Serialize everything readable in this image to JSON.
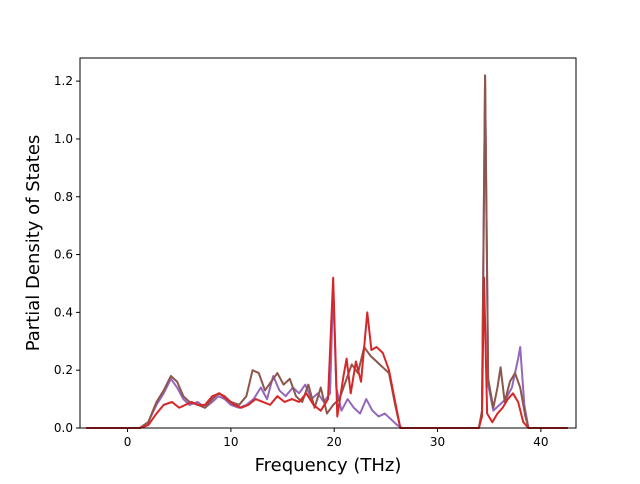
{
  "chart_data": {
    "type": "line",
    "title": "",
    "xlabel": "Frequency (THz)",
    "ylabel": "Partial Density of States",
    "xlim": [
      -4.6,
      43.4
    ],
    "ylim": [
      0.0,
      1.28
    ],
    "xticks": [
      0,
      10,
      20,
      30,
      40
    ],
    "xtick_labels": [
      "0",
      "10",
      "20",
      "30",
      "40"
    ],
    "yticks": [
      0.0,
      0.2,
      0.4,
      0.6,
      0.8,
      1.0,
      1.2
    ],
    "ytick_labels": [
      "0.0",
      "0.2",
      "0.4",
      "0.6",
      "0.8",
      "1.0",
      "1.2"
    ],
    "grid": false,
    "legend": "none",
    "series": [
      {
        "color": "#9467bd",
        "points": [
          [
            -4.0,
            0
          ],
          [
            1.2,
            0
          ],
          [
            2.0,
            0.02
          ],
          [
            2.8,
            0.08
          ],
          [
            3.5,
            0.12
          ],
          [
            4.2,
            0.17
          ],
          [
            4.8,
            0.14
          ],
          [
            5.4,
            0.1
          ],
          [
            6.0,
            0.08
          ],
          [
            6.8,
            0.09
          ],
          [
            7.5,
            0.07
          ],
          [
            8.2,
            0.09
          ],
          [
            8.8,
            0.11
          ],
          [
            9.4,
            0.1
          ],
          [
            10.0,
            0.08
          ],
          [
            10.8,
            0.07
          ],
          [
            11.5,
            0.08
          ],
          [
            12.2,
            0.1
          ],
          [
            12.9,
            0.14
          ],
          [
            13.5,
            0.1
          ],
          [
            14.1,
            0.18
          ],
          [
            14.7,
            0.13
          ],
          [
            15.3,
            0.11
          ],
          [
            16.0,
            0.14
          ],
          [
            16.6,
            0.12
          ],
          [
            17.2,
            0.15
          ],
          [
            17.8,
            0.1
          ],
          [
            18.4,
            0.12
          ],
          [
            19.0,
            0.09
          ],
          [
            19.6,
            0.12
          ],
          [
            19.9,
            0.49
          ],
          [
            20.2,
            0.14
          ],
          [
            20.7,
            0.06
          ],
          [
            21.3,
            0.1
          ],
          [
            21.9,
            0.07
          ],
          [
            22.5,
            0.05
          ],
          [
            23.1,
            0.1
          ],
          [
            23.7,
            0.06
          ],
          [
            24.3,
            0.04
          ],
          [
            24.9,
            0.05
          ],
          [
            25.5,
            0.03
          ],
          [
            26.1,
            0.01
          ],
          [
            26.6,
            0
          ],
          [
            34.0,
            0
          ],
          [
            34.3,
            0.05
          ],
          [
            34.6,
            1.22
          ],
          [
            34.9,
            0.15
          ],
          [
            35.4,
            0.06
          ],
          [
            36.0,
            0.08
          ],
          [
            36.6,
            0.1
          ],
          [
            37.2,
            0.14
          ],
          [
            37.8,
            0.24
          ],
          [
            38.0,
            0.28
          ],
          [
            38.4,
            0.08
          ],
          [
            38.8,
            0
          ],
          [
            42.6,
            0
          ]
        ]
      },
      {
        "color": "#8c564b",
        "points": [
          [
            -4.0,
            0
          ],
          [
            1.2,
            0
          ],
          [
            2.0,
            0.02
          ],
          [
            2.8,
            0.09
          ],
          [
            3.5,
            0.13
          ],
          [
            4.2,
            0.18
          ],
          [
            4.8,
            0.16
          ],
          [
            5.4,
            0.11
          ],
          [
            6.0,
            0.09
          ],
          [
            6.8,
            0.08
          ],
          [
            7.5,
            0.07
          ],
          [
            8.2,
            0.1
          ],
          [
            8.8,
            0.12
          ],
          [
            9.4,
            0.11
          ],
          [
            10.0,
            0.09
          ],
          [
            10.8,
            0.08
          ],
          [
            11.5,
            0.11
          ],
          [
            12.1,
            0.2
          ],
          [
            12.7,
            0.19
          ],
          [
            13.3,
            0.13
          ],
          [
            13.9,
            0.16
          ],
          [
            14.5,
            0.19
          ],
          [
            15.1,
            0.15
          ],
          [
            15.7,
            0.17
          ],
          [
            16.3,
            0.11
          ],
          [
            16.9,
            0.09
          ],
          [
            17.5,
            0.15
          ],
          [
            18.1,
            0.07
          ],
          [
            18.7,
            0.14
          ],
          [
            19.3,
            0.05
          ],
          [
            19.9,
            0.08
          ],
          [
            20.5,
            0.1
          ],
          [
            21.1,
            0.16
          ],
          [
            21.7,
            0.22
          ],
          [
            22.3,
            0.19
          ],
          [
            22.9,
            0.28
          ],
          [
            23.5,
            0.25
          ],
          [
            24.1,
            0.23
          ],
          [
            24.7,
            0.21
          ],
          [
            25.3,
            0.19
          ],
          [
            25.9,
            0.08
          ],
          [
            26.4,
            0
          ],
          [
            34.0,
            0
          ],
          [
            34.3,
            0.06
          ],
          [
            34.6,
            1.22
          ],
          [
            34.9,
            0.17
          ],
          [
            35.4,
            0.07
          ],
          [
            35.8,
            0.14
          ],
          [
            36.1,
            0.21
          ],
          [
            36.5,
            0.09
          ],
          [
            37.0,
            0.16
          ],
          [
            37.5,
            0.19
          ],
          [
            38.0,
            0.14
          ],
          [
            38.5,
            0.04
          ],
          [
            38.8,
            0
          ],
          [
            42.6,
            0
          ]
        ]
      },
      {
        "color": "#d62728",
        "points": [
          [
            -4.0,
            0
          ],
          [
            1.2,
            0
          ],
          [
            2.0,
            0.01
          ],
          [
            2.8,
            0.05
          ],
          [
            3.5,
            0.08
          ],
          [
            4.3,
            0.09
          ],
          [
            5.0,
            0.07
          ],
          [
            5.6,
            0.08
          ],
          [
            6.2,
            0.09
          ],
          [
            6.8,
            0.08
          ],
          [
            7.5,
            0.08
          ],
          [
            8.2,
            0.11
          ],
          [
            8.9,
            0.12
          ],
          [
            9.6,
            0.1
          ],
          [
            10.3,
            0.08
          ],
          [
            11.0,
            0.07
          ],
          [
            11.7,
            0.08
          ],
          [
            12.4,
            0.1
          ],
          [
            13.1,
            0.09
          ],
          [
            13.8,
            0.08
          ],
          [
            14.5,
            0.11
          ],
          [
            15.2,
            0.09
          ],
          [
            15.9,
            0.1
          ],
          [
            16.6,
            0.09
          ],
          [
            17.3,
            0.12
          ],
          [
            18.0,
            0.08
          ],
          [
            18.7,
            0.06
          ],
          [
            19.4,
            0.1
          ],
          [
            19.9,
            0.52
          ],
          [
            20.3,
            0.04
          ],
          [
            20.9,
            0.18
          ],
          [
            21.2,
            0.24
          ],
          [
            21.6,
            0.12
          ],
          [
            22.1,
            0.23
          ],
          [
            22.6,
            0.16
          ],
          [
            23.2,
            0.4
          ],
          [
            23.6,
            0.27
          ],
          [
            24.1,
            0.28
          ],
          [
            24.7,
            0.26
          ],
          [
            25.3,
            0.2
          ],
          [
            25.9,
            0.09
          ],
          [
            26.4,
            0
          ],
          [
            34.0,
            0
          ],
          [
            34.3,
            0.04
          ],
          [
            34.5,
            0.52
          ],
          [
            34.8,
            0.05
          ],
          [
            35.3,
            0.02
          ],
          [
            35.8,
            0.05
          ],
          [
            36.3,
            0.07
          ],
          [
            36.8,
            0.1
          ],
          [
            37.3,
            0.12
          ],
          [
            37.8,
            0.09
          ],
          [
            38.3,
            0.02
          ],
          [
            38.8,
            0
          ],
          [
            42.6,
            0
          ]
        ]
      }
    ]
  }
}
